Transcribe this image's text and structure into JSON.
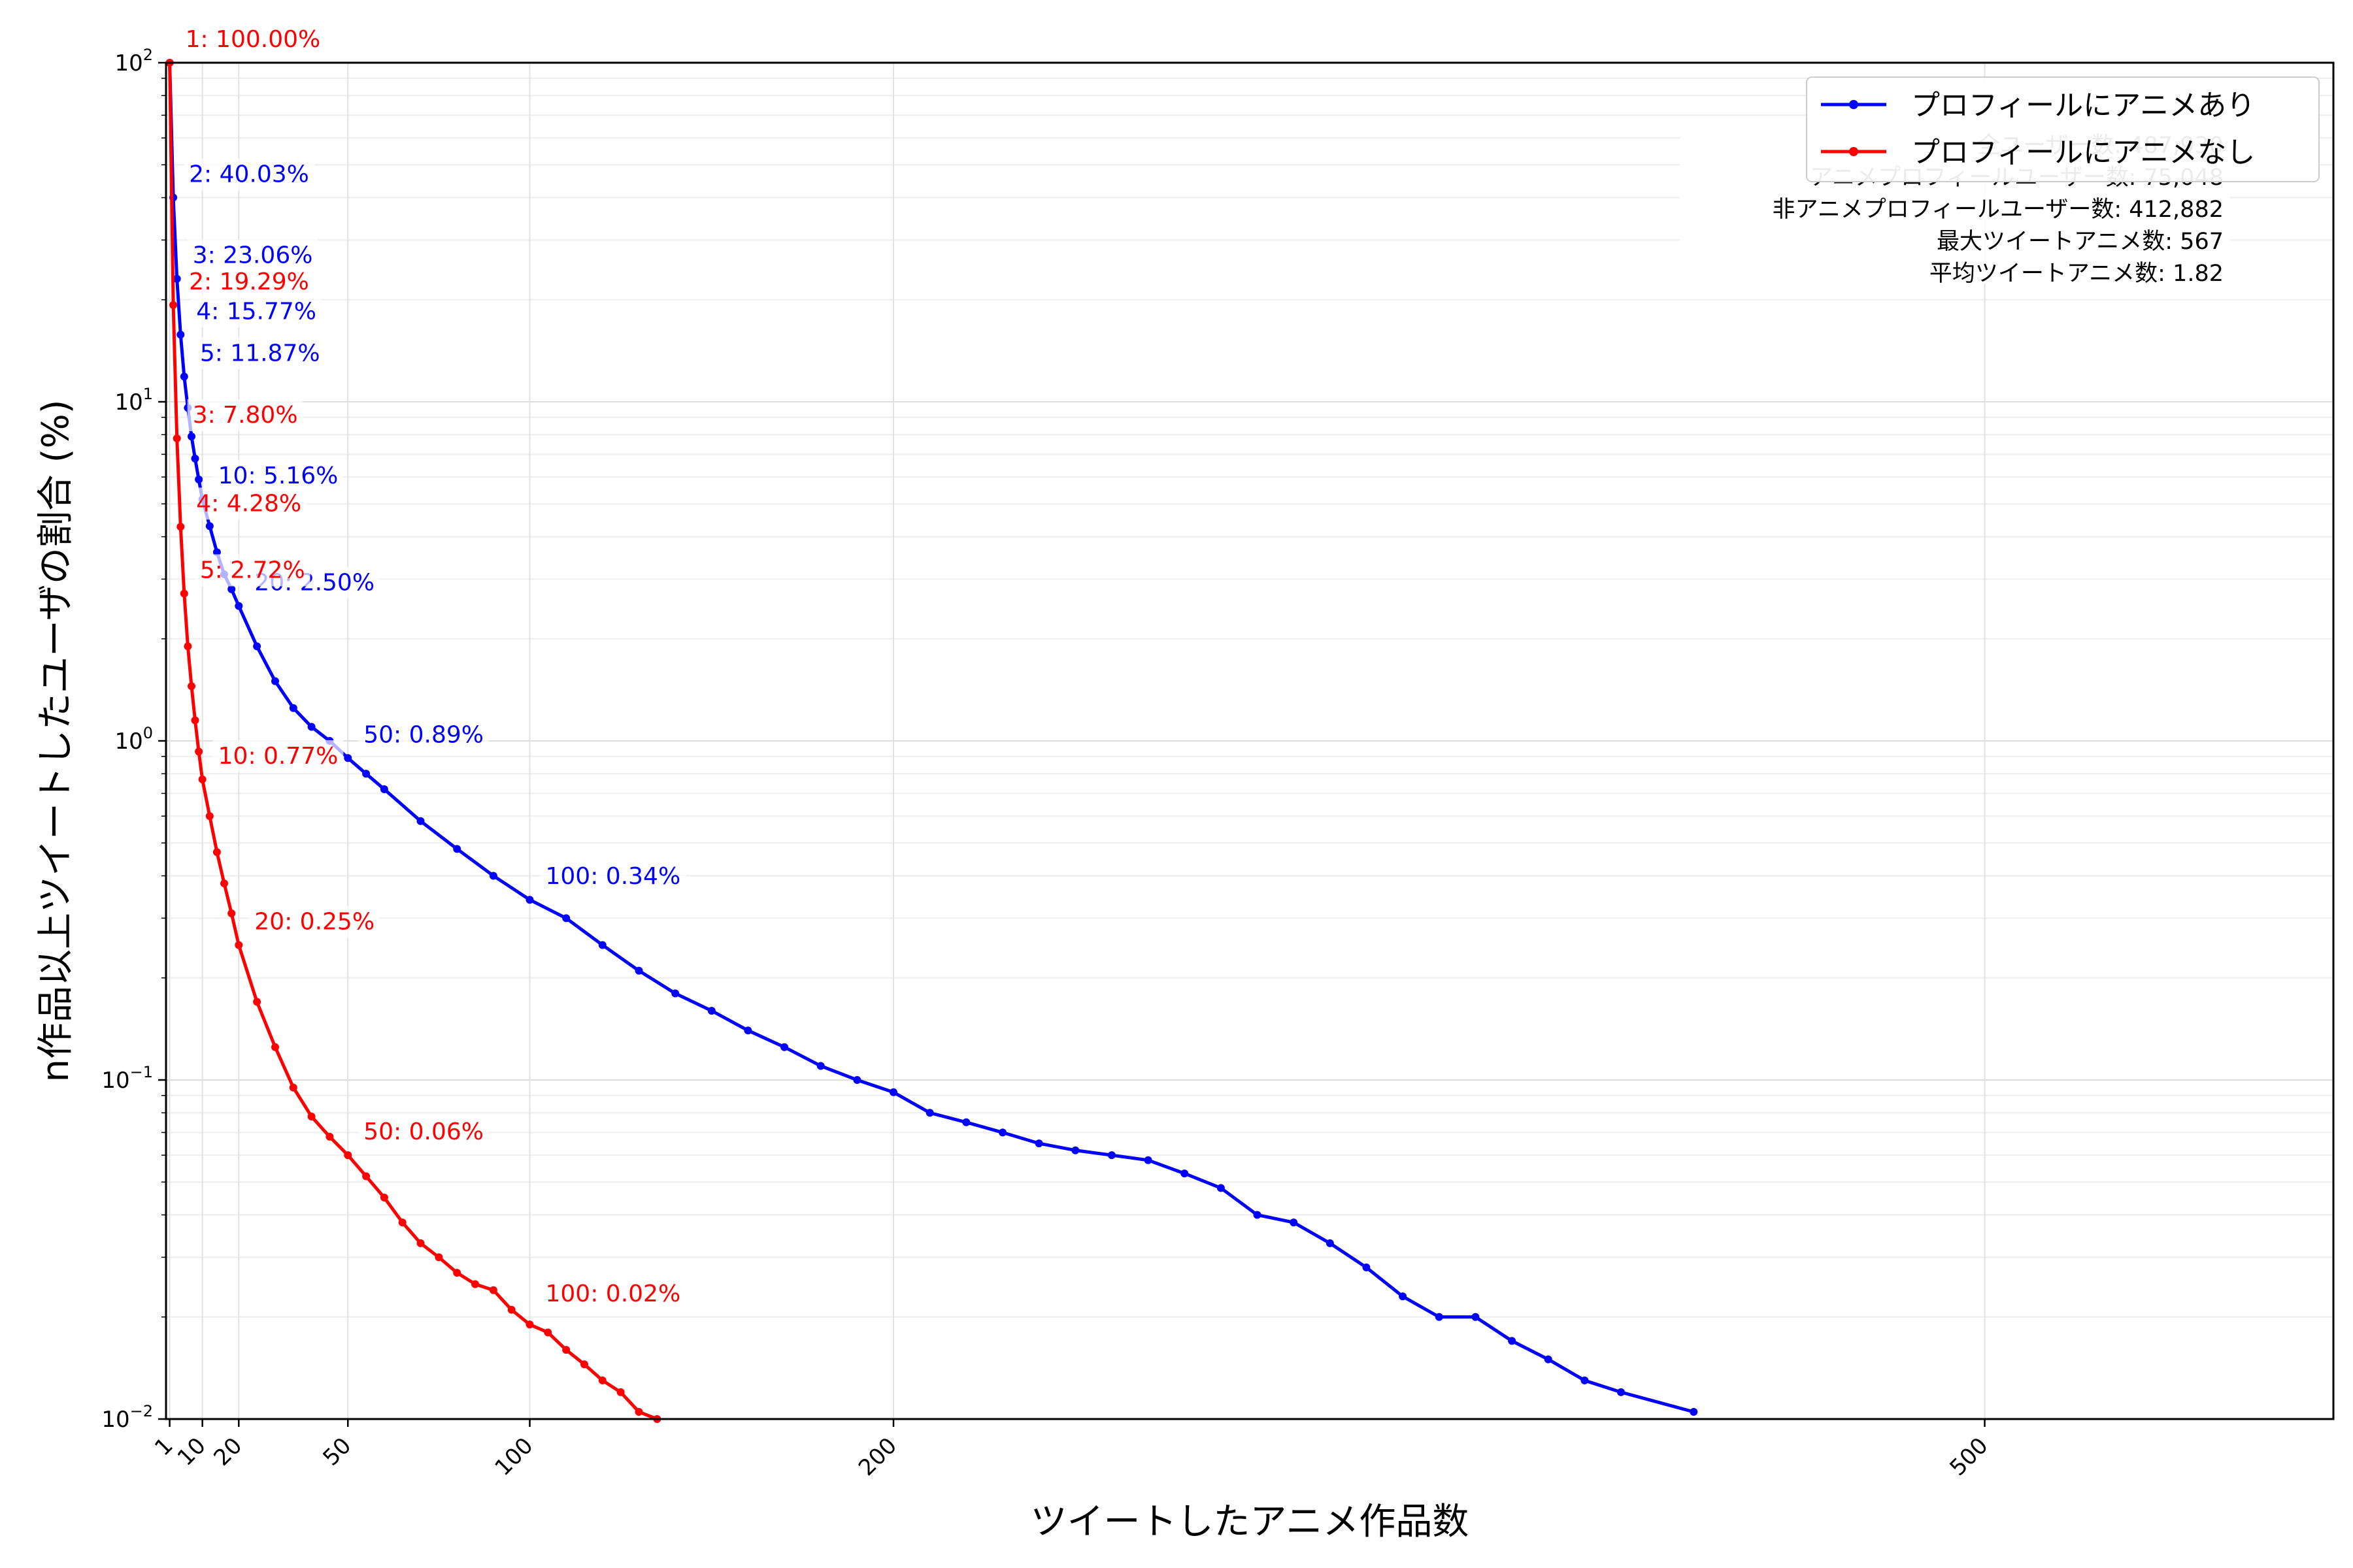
{
  "chart_data": {
    "type": "line",
    "xlabel": "ツイートしたアニメ作品数",
    "ylabel": "n作品以上ツイートしたユーザの割合 (%)",
    "xlim": [
      0,
      600
    ],
    "ylim": [
      0.01,
      100
    ],
    "yscale": "log",
    "xticks": [
      1,
      10,
      20,
      50,
      100,
      200,
      500
    ],
    "yticks": [
      {
        "value": 100,
        "label": "10",
        "exp": "2"
      },
      {
        "value": 10,
        "label": "10",
        "exp": "1"
      },
      {
        "value": 1,
        "label": "10",
        "exp": "0"
      },
      {
        "value": 0.1,
        "label": "10",
        "exp": "−1"
      },
      {
        "value": 0.01,
        "label": "10",
        "exp": "−2"
      }
    ],
    "grid": true,
    "legend_position": "top-right",
    "series": [
      {
        "name": "プロフィールにアニメあり",
        "color": "#0000ff",
        "points": [
          [
            1,
            100
          ],
          [
            2,
            40.03
          ],
          [
            3,
            23.06
          ],
          [
            4,
            15.77
          ],
          [
            5,
            11.87
          ],
          [
            6,
            9.6
          ],
          [
            7,
            7.9
          ],
          [
            8,
            6.8
          ],
          [
            9,
            5.9
          ],
          [
            10,
            5.16
          ],
          [
            12,
            4.3
          ],
          [
            14,
            3.6
          ],
          [
            16,
            3.1
          ],
          [
            18,
            2.8
          ],
          [
            20,
            2.5
          ],
          [
            25,
            1.9
          ],
          [
            30,
            1.5
          ],
          [
            35,
            1.25
          ],
          [
            40,
            1.1
          ],
          [
            45,
            1.0
          ],
          [
            50,
            0.89
          ],
          [
            55,
            0.8
          ],
          [
            60,
            0.72
          ],
          [
            70,
            0.58
          ],
          [
            80,
            0.48
          ],
          [
            90,
            0.4
          ],
          [
            100,
            0.34
          ],
          [
            110,
            0.3
          ],
          [
            120,
            0.25
          ],
          [
            130,
            0.21
          ],
          [
            140,
            0.18
          ],
          [
            150,
            0.16
          ],
          [
            160,
            0.14
          ],
          [
            170,
            0.125
          ],
          [
            180,
            0.11
          ],
          [
            190,
            0.1
          ],
          [
            200,
            0.092
          ],
          [
            210,
            0.08
          ],
          [
            220,
            0.075
          ],
          [
            230,
            0.07
          ],
          [
            240,
            0.065
          ],
          [
            250,
            0.062
          ],
          [
            260,
            0.06
          ],
          [
            270,
            0.058
          ],
          [
            280,
            0.053
          ],
          [
            290,
            0.048
          ],
          [
            300,
            0.04
          ],
          [
            310,
            0.038
          ],
          [
            320,
            0.033
          ],
          [
            330,
            0.028
          ],
          [
            340,
            0.023
          ],
          [
            350,
            0.02
          ],
          [
            360,
            0.02
          ],
          [
            370,
            0.017
          ],
          [
            380,
            0.015
          ],
          [
            390,
            0.013
          ],
          [
            400,
            0.012
          ],
          [
            420,
            0.0105
          ]
        ]
      },
      {
        "name": "プロフィールにアニメなし",
        "color": "#ff0000",
        "points": [
          [
            1,
            100
          ],
          [
            2,
            19.29
          ],
          [
            3,
            7.8
          ],
          [
            4,
            4.28
          ],
          [
            5,
            2.72
          ],
          [
            6,
            1.9
          ],
          [
            7,
            1.45
          ],
          [
            8,
            1.15
          ],
          [
            9,
            0.93
          ],
          [
            10,
            0.77
          ],
          [
            12,
            0.6
          ],
          [
            14,
            0.47
          ],
          [
            16,
            0.38
          ],
          [
            18,
            0.31
          ],
          [
            20,
            0.25
          ],
          [
            25,
            0.17
          ],
          [
            30,
            0.125
          ],
          [
            35,
            0.095
          ],
          [
            40,
            0.078
          ],
          [
            45,
            0.068
          ],
          [
            50,
            0.06
          ],
          [
            55,
            0.052
          ],
          [
            60,
            0.045
          ],
          [
            65,
            0.038
          ],
          [
            70,
            0.033
          ],
          [
            75,
            0.03
          ],
          [
            80,
            0.027
          ],
          [
            85,
            0.025
          ],
          [
            90,
            0.024
          ],
          [
            95,
            0.021
          ],
          [
            100,
            0.019
          ],
          [
            105,
            0.018
          ],
          [
            110,
            0.016
          ],
          [
            115,
            0.0145
          ],
          [
            120,
            0.013
          ],
          [
            125,
            0.012
          ],
          [
            130,
            0.0105
          ],
          [
            135,
            0.01
          ]
        ]
      }
    ],
    "annotations": [
      {
        "series": 0,
        "text": "1: 100.00%",
        "x": 1,
        "y": 100,
        "color": "#ff0000"
      },
      {
        "series": 0,
        "text": "2: 40.03%",
        "x": 2,
        "y": 40.03,
        "color": "#0000ff"
      },
      {
        "series": 0,
        "text": "3: 23.06%",
        "x": 3,
        "y": 23.06,
        "color": "#0000ff"
      },
      {
        "series": 0,
        "text": "4: 15.77%",
        "x": 4,
        "y": 15.77,
        "color": "#0000ff"
      },
      {
        "series": 0,
        "text": "5: 11.87%",
        "x": 5,
        "y": 11.87,
        "color": "#0000ff"
      },
      {
        "series": 0,
        "text": "10: 5.16%",
        "x": 10,
        "y": 5.16,
        "color": "#0000ff"
      },
      {
        "series": 0,
        "text": "20: 2.50%",
        "x": 20,
        "y": 2.5,
        "color": "#0000ff"
      },
      {
        "series": 0,
        "text": "50: 0.89%",
        "x": 50,
        "y": 0.89,
        "color": "#0000ff"
      },
      {
        "series": 0,
        "text": "100: 0.34%",
        "x": 100,
        "y": 0.34,
        "color": "#0000ff"
      },
      {
        "series": 1,
        "text": "2: 19.29%",
        "x": 2,
        "y": 19.29,
        "color": "#ff0000"
      },
      {
        "series": 1,
        "text": "3: 7.80%",
        "x": 3,
        "y": 7.8,
        "color": "#ff0000"
      },
      {
        "series": 1,
        "text": "4: 4.28%",
        "x": 4,
        "y": 4.28,
        "color": "#ff0000"
      },
      {
        "series": 1,
        "text": "5: 2.72%",
        "x": 5,
        "y": 2.72,
        "color": "#ff0000"
      },
      {
        "series": 1,
        "text": "10: 0.77%",
        "x": 10,
        "y": 0.77,
        "color": "#ff0000"
      },
      {
        "series": 1,
        "text": "20: 0.25%",
        "x": 20,
        "y": 0.25,
        "color": "#ff0000"
      },
      {
        "series": 1,
        "text": "50: 0.06%",
        "x": 50,
        "y": 0.06,
        "color": "#ff0000"
      },
      {
        "series": 1,
        "text": "100: 0.02%",
        "x": 100,
        "y": 0.02,
        "color": "#ff0000"
      }
    ],
    "stats_box": [
      "全ユーザー数: 487,930",
      "アニメプロフィールユーザー数: 75,048",
      "非アニメプロフィールユーザー数: 412,882",
      "最大ツイートアニメ数: 567",
      "平均ツイートアニメ数: 1.82"
    ]
  }
}
